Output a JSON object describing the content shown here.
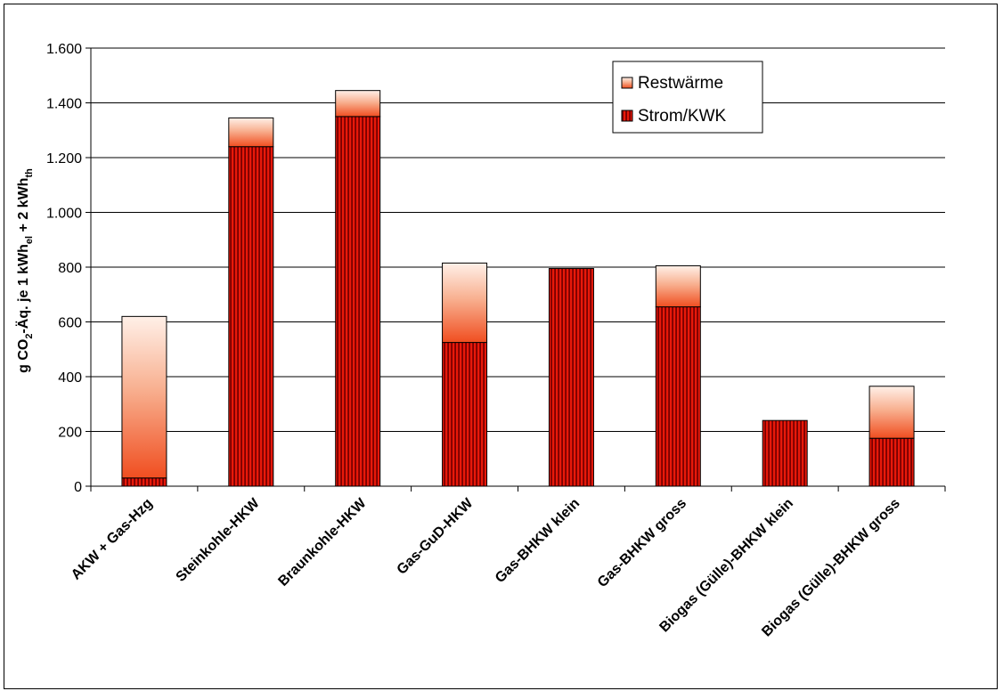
{
  "chart_data": {
    "type": "bar",
    "stacked": true,
    "categories": [
      "AKW + Gas-Hzg",
      "Steinkohle-HKW",
      "Braunkohle-HKW",
      "Gas-GuD-HKW",
      "Gas-BHKW klein",
      "Gas-BHKW gross",
      "Biogas (Gülle)-BHKW klein",
      "Biogas (Gülle)-BHKW gross"
    ],
    "series": [
      {
        "name": "Strom/KWK",
        "values": [
          30,
          1240,
          1350,
          525,
          795,
          655,
          240,
          175
        ],
        "color": "#cc1100"
      },
      {
        "name": "Restwärme",
        "values": [
          590,
          105,
          95,
          290,
          0,
          150,
          0,
          190
        ],
        "color": "#f26a3c"
      }
    ],
    "ylabel": {
      "parts": [
        {
          "t": "g CO",
          "k": "n"
        },
        {
          "t": "2",
          "k": "sub"
        },
        {
          "t": "-Äq. je 1 kWh",
          "k": "n"
        },
        {
          "t": "el",
          "k": "sub"
        },
        {
          "t": " + 2 kWh",
          "k": "n"
        },
        {
          "t": "th",
          "k": "sub"
        }
      ]
    },
    "ylim": [
      0,
      1600
    ],
    "yticks": [
      0,
      200,
      400,
      600,
      800,
      1000,
      1200,
      1400,
      1600
    ],
    "ytick_labels": [
      "0",
      "200",
      "400",
      "600",
      "800",
      "1.000",
      "1.200",
      "1.400",
      "1.600"
    ],
    "grid": true,
    "legend": {
      "placement": "top-right",
      "entries": [
        "Restwärme",
        "Strom/KWK"
      ]
    }
  }
}
